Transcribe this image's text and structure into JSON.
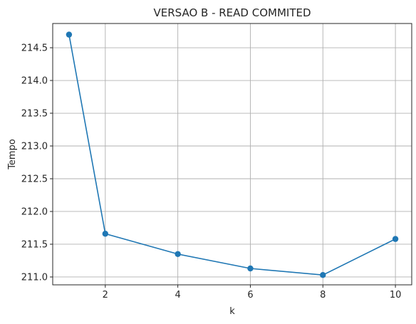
{
  "chart_data": {
    "type": "line",
    "title": "VERSAO B - READ COMMITED",
    "xlabel": "k",
    "ylabel": "Tempo",
    "x": [
      1,
      2,
      4,
      6,
      8,
      10
    ],
    "series": [
      {
        "values": [
          214.7,
          211.66,
          211.35,
          211.13,
          211.03,
          211.58
        ],
        "color": "#1f77b4"
      }
    ],
    "xlim": [
      0.55,
      10.45
    ],
    "ylim": [
      210.88,
      214.87
    ],
    "xticks": [
      2,
      4,
      6,
      8,
      10
    ],
    "xtick_labels": [
      "2",
      "4",
      "6",
      "8",
      "10"
    ],
    "yticks": [
      211.0,
      211.5,
      212.0,
      212.5,
      213.0,
      213.5,
      214.0,
      214.5
    ],
    "ytick_labels": [
      "211.0",
      "211.5",
      "212.0",
      "212.5",
      "213.0",
      "213.5",
      "214.0",
      "214.5"
    ],
    "grid": true,
    "marker": "circle"
  }
}
